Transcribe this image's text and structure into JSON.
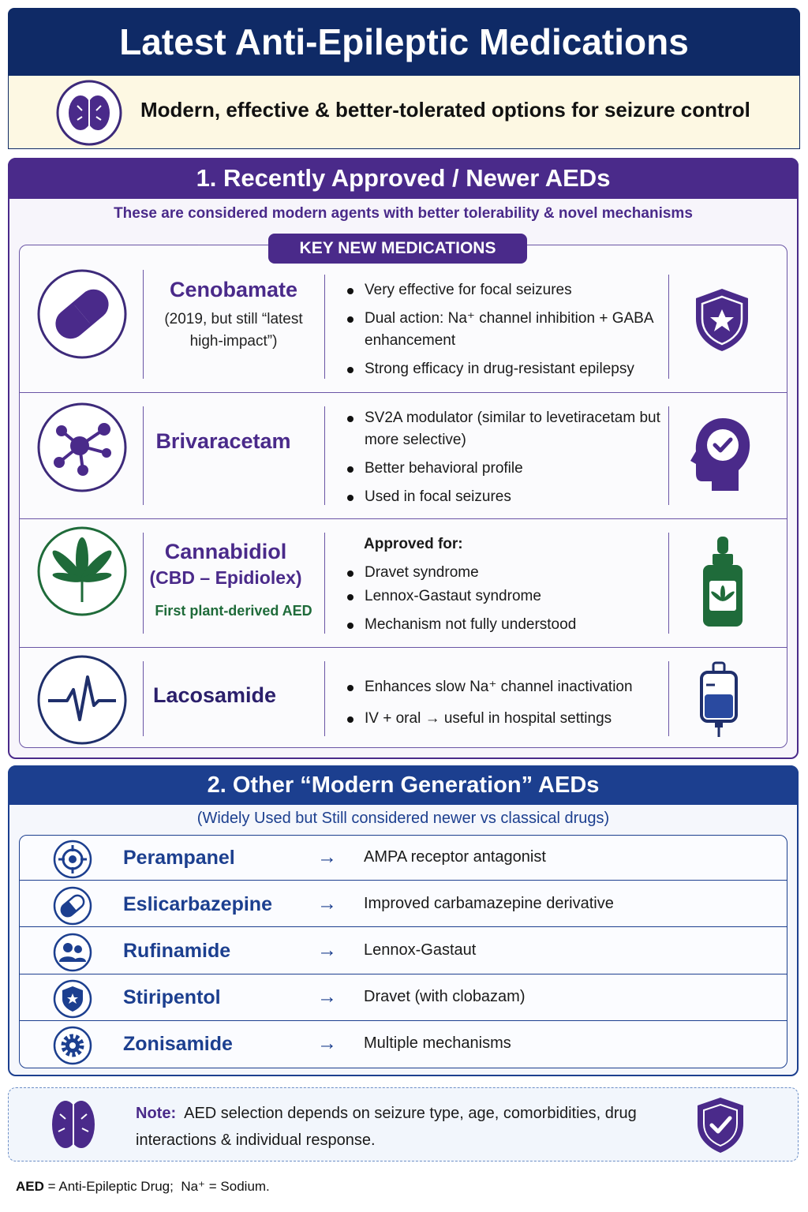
{
  "header": {
    "title": "Latest Anti-Epileptic Medications",
    "subtitle": "Modern, effective & better-tolerated options for seizure control"
  },
  "section1": {
    "title": "1. Recently Approved / Newer AEDs",
    "intro": "These are considered modern agents with better tolerability & novel mechanisms",
    "badge": "KEY NEW MEDICATIONS",
    "drugs": [
      {
        "name": "Cenobamate",
        "detail": "(2019, but still “latest high-impact”)",
        "points": [
          "Very effective for focal seizures",
          "Dual action: Na⁺ channel inhibition + GABA enhancement",
          "Strong efficacy in drug-resistant epilepsy"
        ]
      },
      {
        "name": "Brivaracetam",
        "points": [
          "SV2A modulator (similar to levetiracetam but more selective)",
          "Better behavioral profile",
          "Used in focal seizures"
        ]
      },
      {
        "name": "Cannabidiol",
        "detail": "(CBD – Epidiolex)",
        "tagline": "First plant-derived AED",
        "heading": "Approved for:",
        "points": [
          "Dravet syndrome",
          "Lennox-Gastaut syndrome",
          "Mechanism not fully understood"
        ]
      },
      {
        "name": "Lacosamide",
        "points": [
          "Enhances slow Na⁺ channel inactivation",
          "IV + oral → useful in hospital settings"
        ]
      }
    ]
  },
  "section2": {
    "title": "2. Other “Modern Generation” AEDs",
    "subtitle": "(Widely Used but Still considered newer vs classical drugs)",
    "arrow": "→",
    "rows": [
      {
        "name": "Perampanel",
        "description": "AMPA receptor antagonist"
      },
      {
        "name": "Eslicarbazepine",
        "description": "Improved carbamazepine derivative"
      },
      {
        "name": "Rufinamide",
        "description": "Lennox-Gastaut"
      },
      {
        "name": "Stiripentol",
        "description": "Dravet (with clobazam)"
      },
      {
        "name": "Zonisamide",
        "description": "Multiple mechanisms"
      }
    ]
  },
  "note": {
    "label": "Note:",
    "text": "AED selection depends on seizure type, age, comorbidities, drug interactions & individual response."
  },
  "footer": {
    "abbr1": "AED",
    "def1": "= Anti-Epileptic Drug;",
    "abbr2": "Na⁺",
    "def2": "= Sodium."
  }
}
